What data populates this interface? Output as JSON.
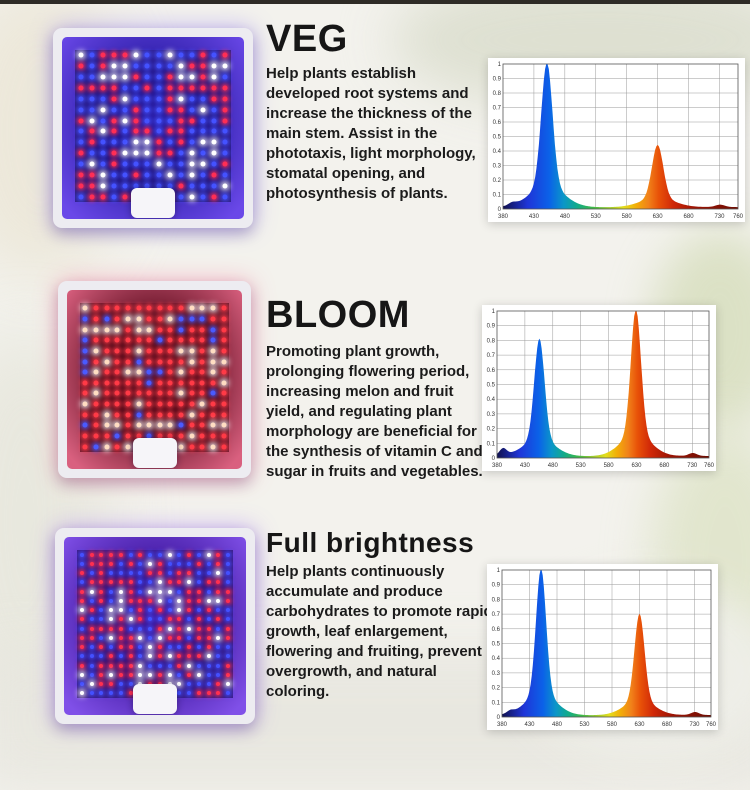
{
  "page": {
    "background_color": "#f3f2ed",
    "top_strip_color": "#2e2b26"
  },
  "sections": [
    {
      "title": "VEG",
      "description": "Help plants establish developed root systems and increase the thickness of the main stem. Assist in the phototaxis, light morphology, stomatal opening, and photosynthesis of plants.",
      "panel": {
        "rows": 14,
        "cols": 14,
        "led_size": 5,
        "cavity_center": "#2c1ea6",
        "cavity_edge": "#150b58",
        "wall_color": "#6a48e8",
        "glow": "#7a5cff",
        "led_colors": {
          "blue": "#4452ff",
          "red": "#ff2e55",
          "white": "#ffffff"
        },
        "led_weights": {
          "blue": 0.5,
          "red": 0.34,
          "white": 0.16
        }
      }
    },
    {
      "title": "BLOOM",
      "description": "Promoting plant growth, prolonging flowering period, increasing melon and fruit yield, and regulating plant morphology are beneficial for the synthesis of vitamin C and sugar in fruits and vegetables.",
      "panel": {
        "rows": 14,
        "cols": 14,
        "led_size": 5,
        "cavity_center": "#611023",
        "cavity_edge": "#33060f",
        "wall_color": "#d9607f",
        "glow": "#ff5a8a",
        "led_colors": {
          "red": "#ff3a46",
          "blue": "#4a5aff",
          "white": "#ffddc2"
        },
        "led_weights": {
          "red": 0.56,
          "blue": 0.22,
          "white": 0.22
        }
      }
    },
    {
      "title": "Full brightness",
      "description": "Help plants continuously accumulate and produce carbohydrates to promote rapid growth, leaf enlargement, flowering and fruiting, prevent overgrowth, and natural coloring.",
      "panel": {
        "rows": 16,
        "cols": 16,
        "led_size": 4,
        "cavity_center": "#40189e",
        "cavity_edge": "#1c0b55",
        "wall_color": "#8050e8",
        "glow": "#8a4cff",
        "led_colors": {
          "red": "#ff3050",
          "blue": "#4450ff",
          "white": "#ffffff"
        },
        "led_weights": {
          "red": 0.42,
          "blue": 0.36,
          "white": 0.22
        }
      }
    }
  ],
  "chart_data": [
    {
      "type": "area",
      "title": "",
      "xlim": [
        380,
        760
      ],
      "ylim": [
        0,
        1
      ],
      "grid": true,
      "x_ticks": [
        380,
        430,
        480,
        530,
        580,
        630,
        680,
        730,
        760
      ],
      "y_ticks": [
        0,
        0.1,
        0.2,
        0.3,
        0.4,
        0.5,
        0.6,
        0.7,
        0.8,
        0.9,
        1
      ],
      "baseline": 0.012,
      "peaks": [
        {
          "center": 395,
          "height": 0.02,
          "width": 6
        },
        {
          "center": 451,
          "height": 1.0,
          "width": 9
        },
        {
          "center": 630,
          "height": 0.43,
          "width": 9
        },
        {
          "center": 731,
          "height": 0.018,
          "width": 7
        }
      ]
    },
    {
      "type": "area",
      "title": "",
      "xlim": [
        380,
        760
      ],
      "ylim": [
        0,
        1
      ],
      "grid": true,
      "x_ticks": [
        380,
        430,
        480,
        530,
        580,
        630,
        680,
        730,
        760
      ],
      "y_ticks": [
        0,
        0.1,
        0.2,
        0.3,
        0.4,
        0.5,
        0.6,
        0.7,
        0.8,
        0.9,
        1
      ],
      "baseline": 0.012,
      "peaks": [
        {
          "center": 391,
          "height": 0.05,
          "width": 6
        },
        {
          "center": 456,
          "height": 0.8,
          "width": 9
        },
        {
          "center": 629,
          "height": 1.0,
          "width": 9
        },
        {
          "center": 731,
          "height": 0.022,
          "width": 7
        }
      ]
    },
    {
      "type": "area",
      "title": "",
      "xlim": [
        380,
        760
      ],
      "ylim": [
        0,
        1
      ],
      "grid": true,
      "x_ticks": [
        380,
        430,
        480,
        530,
        580,
        630,
        680,
        730,
        760
      ],
      "y_ticks": [
        0,
        0.1,
        0.2,
        0.3,
        0.4,
        0.5,
        0.6,
        0.7,
        0.8,
        0.9,
        1
      ],
      "baseline": 0.012,
      "peaks": [
        {
          "center": 395,
          "height": 0.02,
          "width": 6
        },
        {
          "center": 451,
          "height": 1.0,
          "width": 9
        },
        {
          "center": 630,
          "height": 0.69,
          "width": 9
        },
        {
          "center": 731,
          "height": 0.022,
          "width": 7
        }
      ]
    }
  ],
  "spectrum_colors": [
    {
      "wl": 380,
      "color": "#11114e"
    },
    {
      "wl": 420,
      "color": "#1f35d8"
    },
    {
      "wl": 455,
      "color": "#0b62e8"
    },
    {
      "wl": 478,
      "color": "#0b96c8"
    },
    {
      "wl": 500,
      "color": "#12ab8a"
    },
    {
      "wl": 525,
      "color": "#3db948"
    },
    {
      "wl": 552,
      "color": "#9ccb2e"
    },
    {
      "wl": 575,
      "color": "#e3de1e"
    },
    {
      "wl": 595,
      "color": "#f2ae08"
    },
    {
      "wl": 615,
      "color": "#f1821a"
    },
    {
      "wl": 632,
      "color": "#e85108"
    },
    {
      "wl": 655,
      "color": "#d02808"
    },
    {
      "wl": 690,
      "color": "#9c1404"
    },
    {
      "wl": 760,
      "color": "#6e0e04"
    }
  ]
}
